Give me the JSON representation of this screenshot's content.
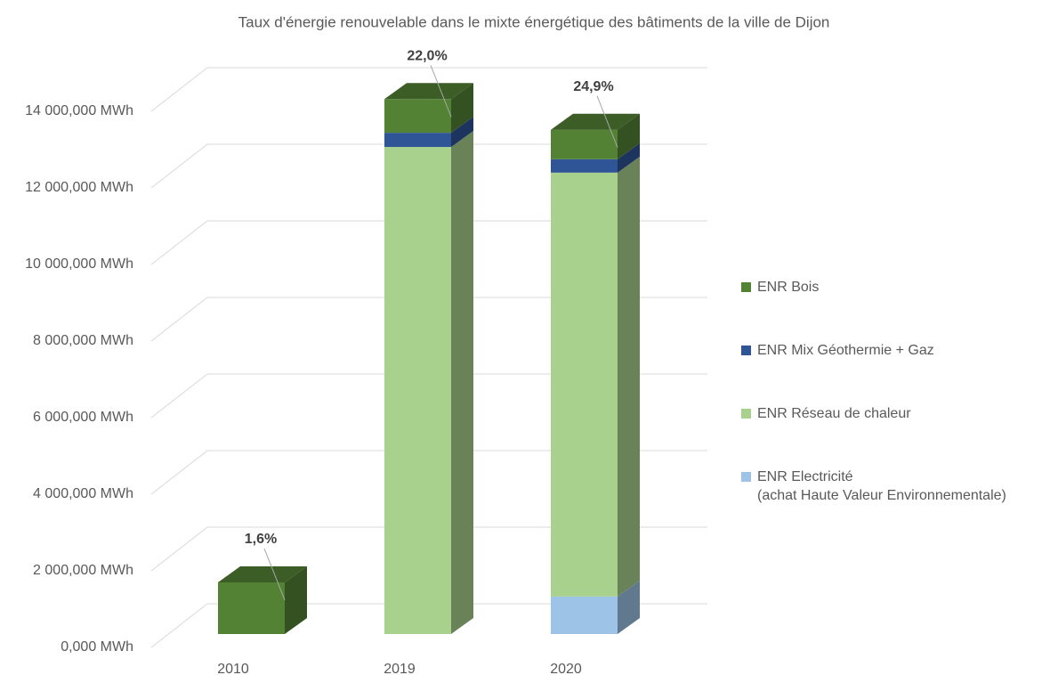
{
  "chart_data": {
    "type": "bar3d_stacked",
    "title": "Taux d'énergie renouvelable dans le mixte énergétique des bâtiments de la ville de Dijon",
    "categories": [
      "2010",
      "2019",
      "2020"
    ],
    "series": [
      {
        "name": "ENR  Bois",
        "color": "#548235",
        "values": [
          1350000,
          880000,
          770000
        ]
      },
      {
        "name": "ENR  Mix Géothermie + Gaz",
        "color": "#2f5597",
        "values": [
          0,
          370000,
          350000
        ]
      },
      {
        "name": "ENR  Réseau de chaleur",
        "color": "#a9d18e",
        "values": [
          0,
          12720000,
          11070000
        ]
      },
      {
        "name": "ENR Electricité\n(achat Haute Valeur Environnementale)",
        "color": "#9dc3e6",
        "values": [
          0,
          0,
          980000
        ]
      }
    ],
    "share_labels": [
      "1,6%",
      "22,0%",
      "24,9%"
    ],
    "ylim": [
      0,
      14000000
    ],
    "yticks": [
      {
        "value": 0,
        "label": "0,000 MWh"
      },
      {
        "value": 2000000,
        "label": "2 000,000 MWh"
      },
      {
        "value": 4000000,
        "label": "4 000,000 MWh"
      },
      {
        "value": 6000000,
        "label": "6 000,000 MWh"
      },
      {
        "value": 8000000,
        "label": "8 000,000 MWh"
      },
      {
        "value": 10000000,
        "label": "10 000,000 MWh"
      },
      {
        "value": 12000000,
        "label": "12 000,000 MWh"
      },
      {
        "value": 14000000,
        "label": "14 000,000 MWh"
      }
    ],
    "grid": true,
    "legend": "right"
  }
}
